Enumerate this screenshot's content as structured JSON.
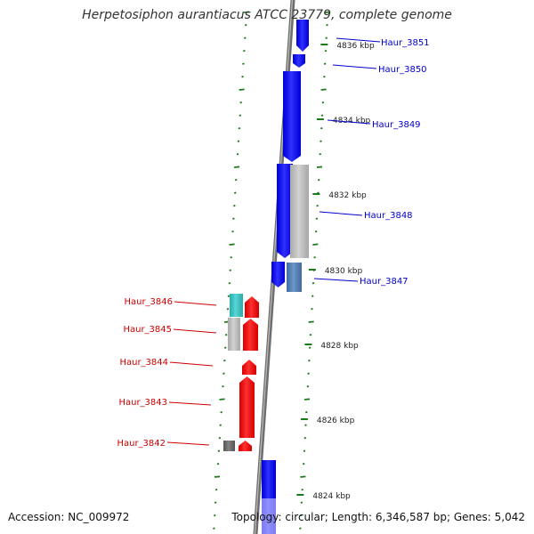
{
  "title": "Herpetosiphon aurantiacus ATCC 23779, complete genome",
  "footer": {
    "accession": "Accession: NC_009972",
    "summary": "Topology: circular; Length: 6,346,587 bp; Genes: 5,042"
  },
  "colors": {
    "forward_gene": "#0000ff",
    "reverse_gene": "#ff0000",
    "label_forward": "#0000cc",
    "label_reverse": "#cc0000",
    "tick": "#1a7a1a",
    "backbone": "#888888"
  },
  "ticks": [
    {
      "label": "4836 kbp"
    },
    {
      "label": "4834 kbp"
    },
    {
      "label": "4832 kbp"
    },
    {
      "label": "4830 kbp"
    },
    {
      "label": "4828 kbp"
    },
    {
      "label": "4826 kbp"
    },
    {
      "label": "4824 kbp"
    }
  ],
  "genes": [
    {
      "name": "Haur_3851",
      "strand": "forward"
    },
    {
      "name": "Haur_3850",
      "strand": "forward"
    },
    {
      "name": "Haur_3849",
      "strand": "forward"
    },
    {
      "name": "Haur_3848",
      "strand": "forward"
    },
    {
      "name": "Haur_3847",
      "strand": "forward"
    },
    {
      "name": "Haur_3846",
      "strand": "reverse"
    },
    {
      "name": "Haur_3845",
      "strand": "reverse"
    },
    {
      "name": "Haur_3844",
      "strand": "reverse"
    },
    {
      "name": "Haur_3843",
      "strand": "reverse"
    },
    {
      "name": "Haur_3842",
      "strand": "reverse"
    }
  ]
}
